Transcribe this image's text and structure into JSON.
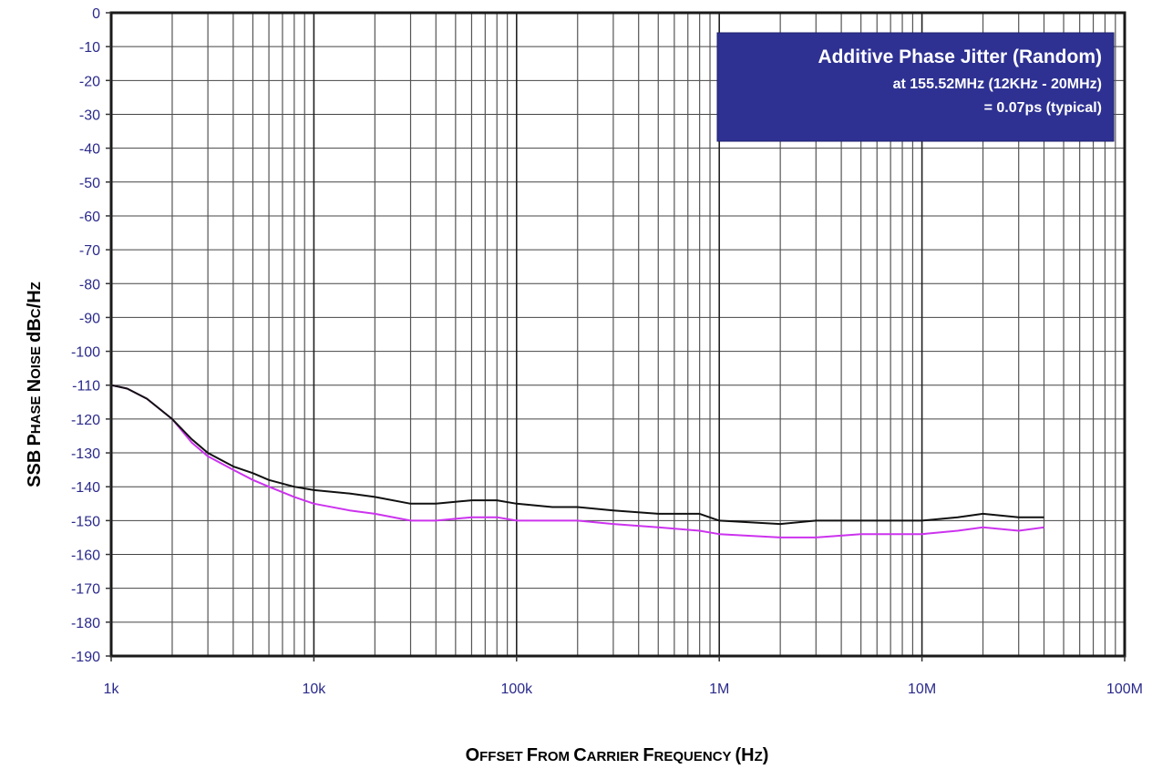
{
  "chart_data": {
    "type": "line",
    "xscale": "log",
    "xlim": [
      1000,
      100000000
    ],
    "ylim": [
      -190,
      0
    ],
    "grid": true,
    "xtick_values": [
      1000,
      10000,
      100000,
      1000000,
      10000000,
      100000000
    ],
    "xtick_labels": [
      "1k",
      "10k",
      "100k",
      "1M",
      "10M",
      "100M"
    ],
    "ytick_values": [
      0,
      -10,
      -20,
      -30,
      -40,
      -50,
      -60,
      -70,
      -80,
      -90,
      -100,
      -110,
      -120,
      -130,
      -140,
      -150,
      -160,
      -170,
      -180,
      -190
    ],
    "ytick_labels": [
      "0",
      "-10",
      "-20",
      "-30",
      "-40",
      "-50",
      "-60",
      "-70",
      "-80",
      "-90",
      "-100",
      "-110",
      "-120",
      "-130",
      "-140",
      "-150",
      "-160",
      "-170",
      "-180",
      "-190"
    ],
    "ylabel": "SSB Phase Noise dBc/Hz",
    "xlabel": "Offset From Carrier Frequency (Hz)",
    "annotation": {
      "line1": "Additive Phase Jitter (Random)",
      "line2": "at 155.52MHz (12KHz - 20MHz)",
      "line3": "= 0.07ps (typical)",
      "background": "#2e3192",
      "text_color": "#ffffff"
    },
    "series": [
      {
        "color": "#111111",
        "x": [
          1000,
          1200,
          1500,
          2000,
          2500,
          3000,
          4000,
          5000,
          6000,
          8000,
          10000,
          15000,
          20000,
          30000,
          40000,
          60000,
          80000,
          100000,
          150000,
          200000,
          300000,
          500000,
          800000,
          1000000,
          2000000,
          3000000,
          5000000,
          8000000,
          10000000,
          15000000,
          20000000,
          30000000,
          40000000
        ],
        "y": [
          -110,
          -111,
          -114,
          -120,
          -126,
          -130,
          -134,
          -136,
          -138,
          -140,
          -141,
          -142,
          -143,
          -145,
          -145,
          -144,
          -144,
          -145,
          -146,
          -146,
          -147,
          -148,
          -148,
          -150,
          -151,
          -150,
          -150,
          -150,
          -150,
          -149,
          -148,
          -149,
          -149
        ]
      },
      {
        "color": "#cc33ee",
        "x": [
          1000,
          1200,
          1500,
          2000,
          2500,
          3000,
          4000,
          5000,
          6000,
          8000,
          10000,
          15000,
          20000,
          30000,
          40000,
          60000,
          80000,
          100000,
          150000,
          200000,
          300000,
          500000,
          800000,
          1000000,
          2000000,
          3000000,
          5000000,
          8000000,
          10000000,
          15000000,
          20000000,
          30000000,
          40000000
        ],
        "y": [
          -110,
          -111,
          -114,
          -120,
          -127,
          -131,
          -135,
          -138,
          -140,
          -143,
          -145,
          -147,
          -148,
          -150,
          -150,
          -149,
          -149,
          -150,
          -150,
          -150,
          -151,
          -152,
          -153,
          -154,
          -155,
          -155,
          -154,
          -154,
          -154,
          -153,
          -152,
          -153,
          -152
        ]
      }
    ]
  }
}
